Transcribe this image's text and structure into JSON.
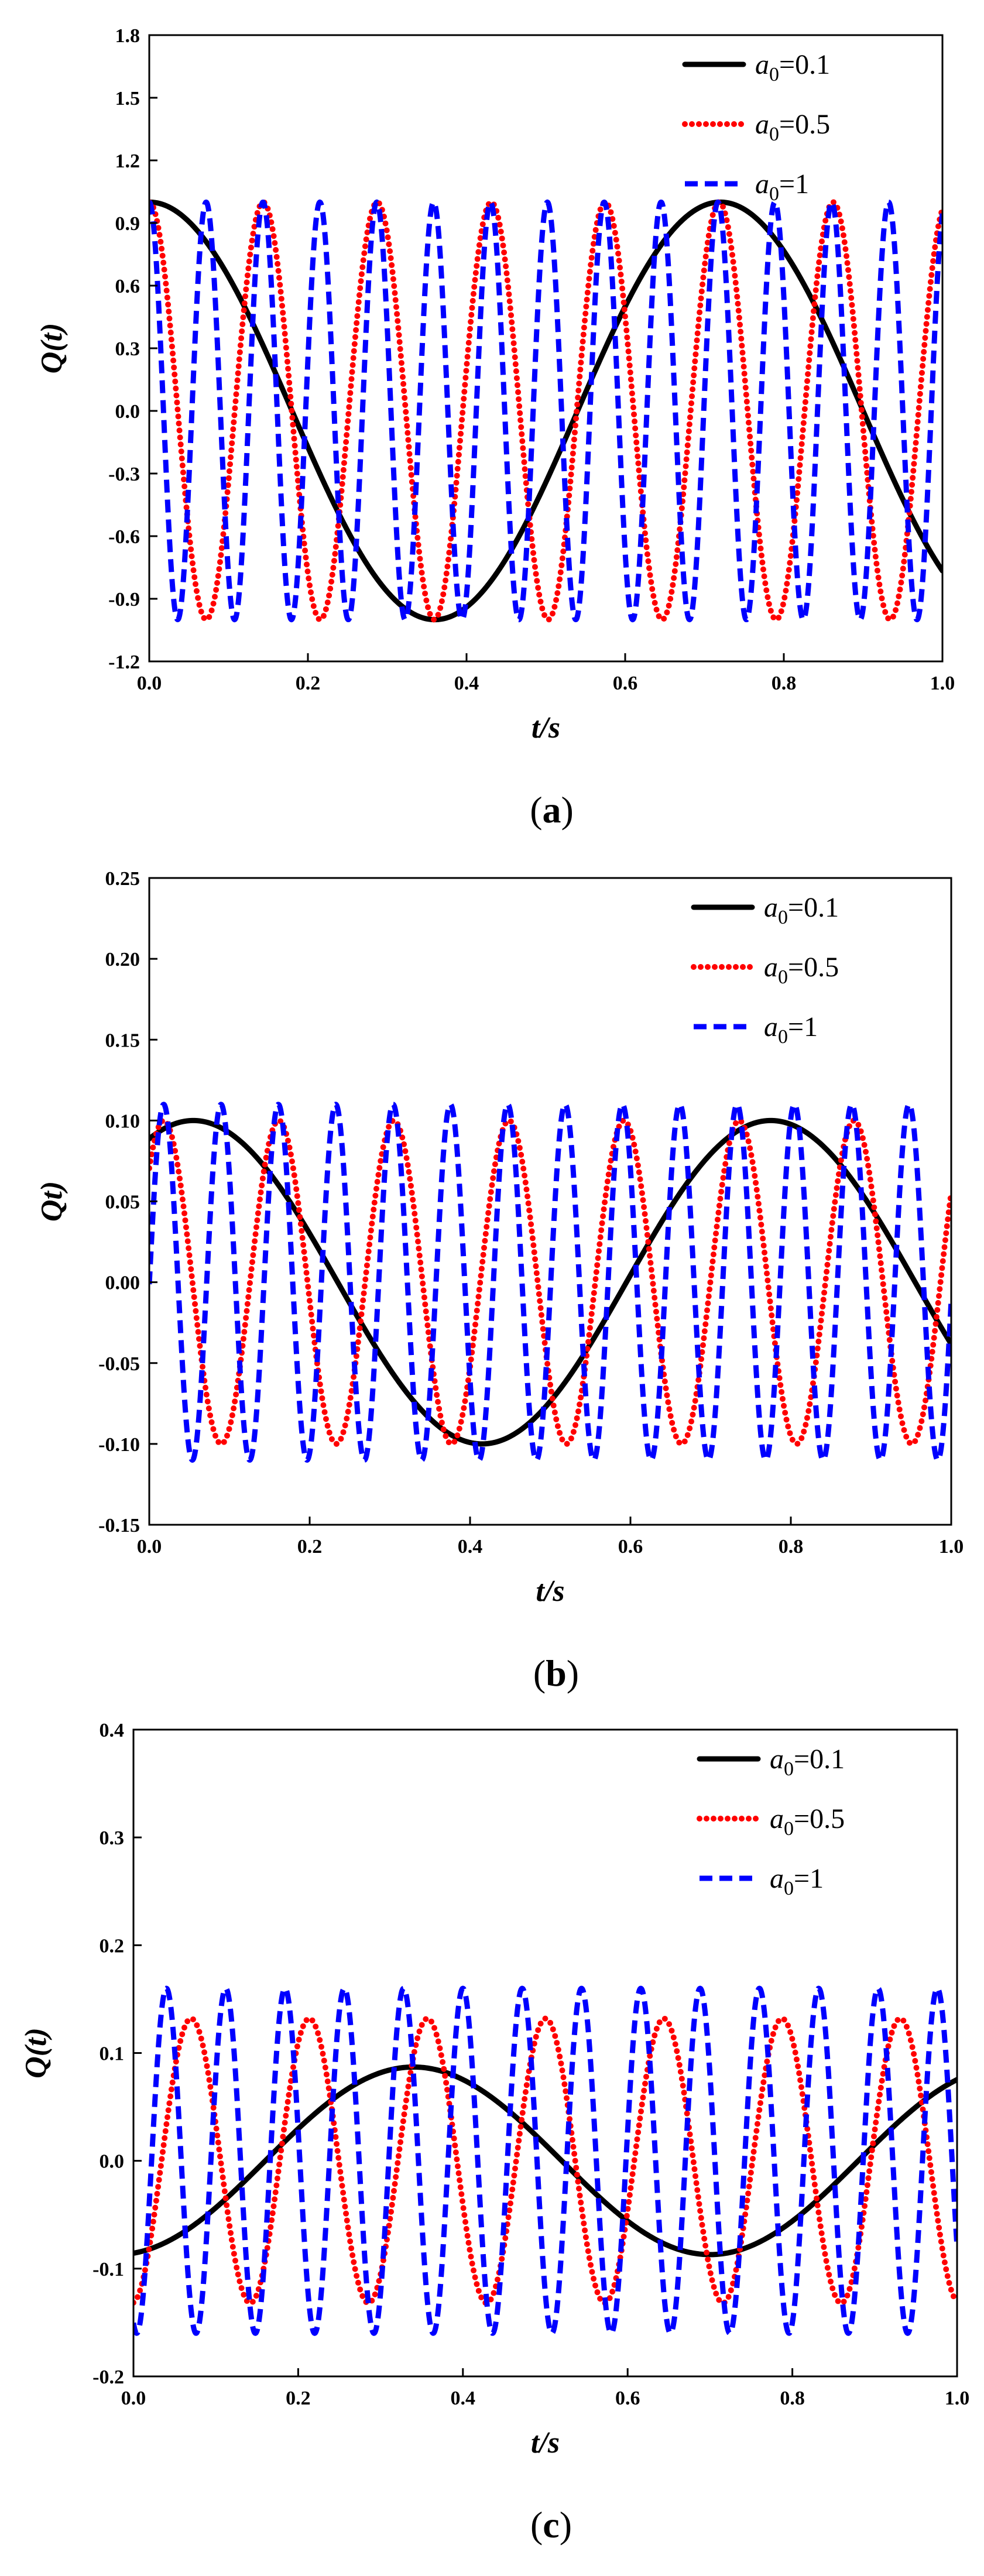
{
  "colors": {
    "background": "#ffffff",
    "axis": "#000000",
    "series_a0_0_1": "#000000",
    "series_a0_0_5": "#ff0000",
    "series_a0_1": "#0000ff"
  },
  "chart_data": [
    {
      "panel": "a",
      "caption_letter": "a",
      "type": "line",
      "title": "",
      "xlabel": "t/s",
      "ylabel": "Q(t)",
      "xlim": [
        0.0,
        1.0
      ],
      "ylim": [
        -1.2,
        1.8
      ],
      "x_ticks": [
        0.0,
        0.2,
        0.4,
        0.6,
        0.8,
        1.0
      ],
      "x_tick_labels": [
        "0.0",
        "0.2",
        "0.4",
        "0.6",
        "0.8",
        "1.0"
      ],
      "y_ticks": [
        -1.2,
        -0.9,
        -0.6,
        -0.3,
        0.0,
        0.3,
        0.6,
        0.9,
        1.2,
        1.5,
        1.8
      ],
      "y_tick_labels": [
        "-1.2",
        "-0.9",
        "-0.6",
        "-0.3",
        "0.0",
        "0.3",
        "0.6",
        "0.9",
        "1.2",
        "1.5",
        "1.8"
      ],
      "legend_position": "top-right",
      "series": [
        {
          "name": "a0=0.1",
          "legend_var": "a",
          "legend_sub": "0",
          "legend_value": "=0.1",
          "style": "solid",
          "color": "#000000",
          "amplitude": 1.0,
          "period": 0.72,
          "phase_x": 0.0,
          "samples": 601
        },
        {
          "name": "a0=0.5",
          "legend_var": "a",
          "legend_sub": "0",
          "legend_value": "=0.5",
          "style": "dotted",
          "color": "#ff0000",
          "amplitude": 1.0,
          "period": 0.1437,
          "phase_x": 0.0,
          "samples": 1201
        },
        {
          "name": "a0=1",
          "legend_var": "a",
          "legend_sub": "0",
          "legend_value": "=1",
          "style": "dashed",
          "color": "#0000ff",
          "amplitude": 1.0,
          "period": 0.0717,
          "phase_x": 0.0,
          "samples": 1601
        }
      ]
    },
    {
      "panel": "b",
      "caption_letter": "b",
      "type": "line",
      "title": "",
      "xlabel": "t/s",
      "ylabel": "Qt)",
      "xlim": [
        0.0,
        1.0
      ],
      "ylim": [
        -0.15,
        0.25
      ],
      "x_ticks": [
        0.0,
        0.2,
        0.4,
        0.6,
        0.8,
        1.0
      ],
      "x_tick_labels": [
        "0.0",
        "0.2",
        "0.4",
        "0.6",
        "0.8",
        "1.0"
      ],
      "y_ticks": [
        -0.15,
        -0.1,
        -0.05,
        0.0,
        0.05,
        0.1,
        0.15,
        0.2,
        0.25
      ],
      "y_tick_labels": [
        "-0.15",
        "-0.10",
        "-0.05",
        "0.00",
        "0.05",
        "0.10",
        "0.15",
        "0.20",
        "0.25"
      ],
      "legend_position": "top-right",
      "series": [
        {
          "name": "a0=0.1",
          "legend_var": "a",
          "legend_sub": "0",
          "legend_value": "=0.1",
          "style": "solid",
          "color": "#000000",
          "amplitude": 0.1,
          "period": 0.72,
          "phase_x": 0.055,
          "samples": 601
        },
        {
          "name": "a0=0.5",
          "legend_var": "a",
          "legend_sub": "0",
          "legend_value": "=0.5",
          "style": "dotted",
          "color": "#ff0000",
          "amplitude": 0.1,
          "period": 0.1435,
          "phase_x": 0.018,
          "samples": 1201
        },
        {
          "name": "a0=1",
          "legend_var": "a",
          "legend_sub": "0",
          "legend_value": "=1",
          "style": "dashed",
          "color": "#0000ff",
          "amplitude": 0.11,
          "period": 0.0715,
          "phase_x": 0.018,
          "samples": 1601
        }
      ]
    },
    {
      "panel": "c",
      "caption_letter": "c",
      "type": "line",
      "title": "",
      "xlabel": "t/s",
      "ylabel": "Q(t)",
      "xlim": [
        0.0,
        1.0
      ],
      "ylim": [
        -0.2,
        0.4
      ],
      "x_ticks": [
        0.0,
        0.2,
        0.4,
        0.6,
        0.8,
        1.0
      ],
      "x_tick_labels": [
        "0.0",
        "0.2",
        "0.4",
        "0.6",
        "0.8",
        "1.0"
      ],
      "y_ticks": [
        -0.2,
        -0.1,
        0.0,
        0.1,
        0.2,
        0.3,
        0.4
      ],
      "y_tick_labels": [
        "-0.2",
        "-0.1",
        "0.0",
        "0.1",
        "0.2",
        "0.3",
        "0.4"
      ],
      "legend_position": "top-right",
      "series": [
        {
          "name": "a0=0.1",
          "legend_var": "a",
          "legend_sub": "0",
          "legend_value": "=0.1",
          "style": "solid",
          "color": "#000000",
          "amplitude": 0.087,
          "period": 0.72,
          "phase_x": 0.34,
          "samples": 601
        },
        {
          "name": "a0=0.5",
          "legend_var": "a",
          "legend_sub": "0",
          "legend_value": "=0.5",
          "style": "dotted",
          "color": "#ff0000",
          "amplitude": 0.132,
          "period": 0.1435,
          "phase_x": 0.07,
          "samples": 1201
        },
        {
          "name": "a0=1",
          "legend_var": "a",
          "legend_sub": "0",
          "legend_value": "=1",
          "style": "dashed",
          "color": "#0000ff",
          "amplitude": 0.16,
          "period": 0.072,
          "phase_x": 0.04,
          "samples": 1601
        }
      ]
    }
  ]
}
